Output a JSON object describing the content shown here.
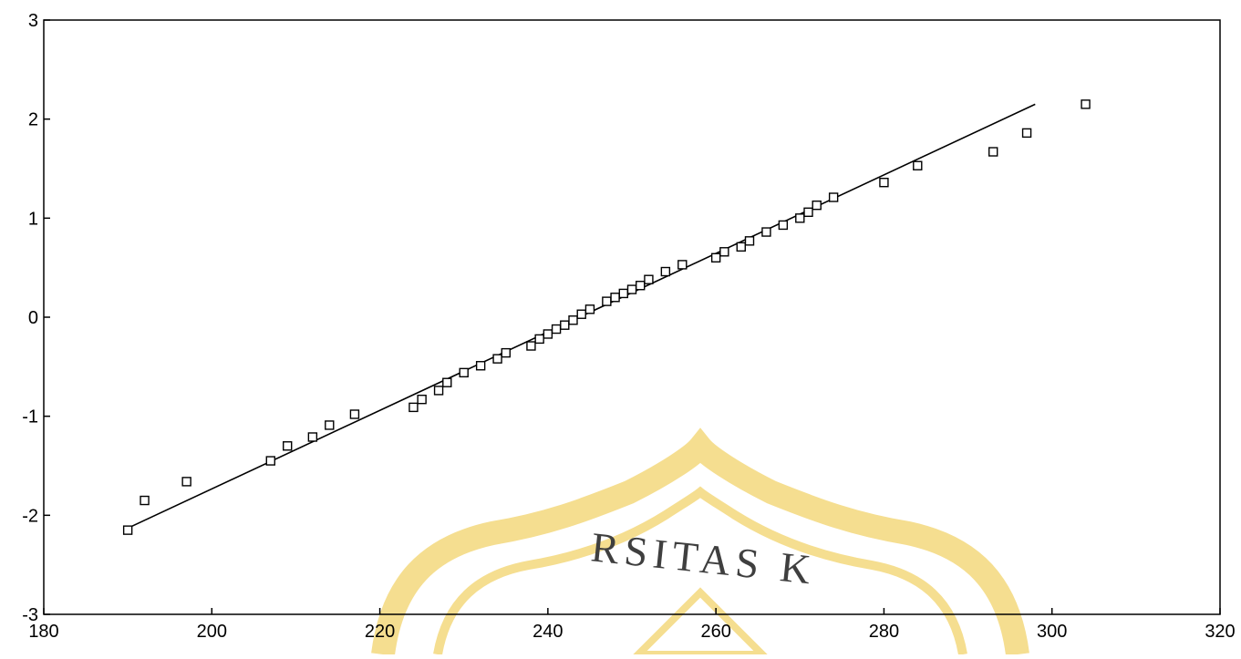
{
  "chart_data": {
    "type": "scatter",
    "title": "",
    "xlabel": "",
    "ylabel": "",
    "xlim": [
      180,
      320
    ],
    "ylim": [
      -3,
      3
    ],
    "grid": false,
    "legend": "none",
    "x_ticks": [
      "180",
      "200",
      "220",
      "240",
      "260",
      "280",
      "300",
      "320"
    ],
    "y_ticks": [
      "-3",
      "-2",
      "-1",
      "0",
      "1",
      "2",
      "3"
    ],
    "points": [
      {
        "x": 190,
        "y": -2.15
      },
      {
        "x": 192,
        "y": -1.85
      },
      {
        "x": 197,
        "y": -1.66
      },
      {
        "x": 207,
        "y": -1.45
      },
      {
        "x": 209,
        "y": -1.3
      },
      {
        "x": 212,
        "y": -1.21
      },
      {
        "x": 214,
        "y": -1.09
      },
      {
        "x": 217,
        "y": -0.98
      },
      {
        "x": 224,
        "y": -0.91
      },
      {
        "x": 225,
        "y": -0.83
      },
      {
        "x": 227,
        "y": -0.74
      },
      {
        "x": 228,
        "y": -0.66
      },
      {
        "x": 230,
        "y": -0.56
      },
      {
        "x": 232,
        "y": -0.49
      },
      {
        "x": 234,
        "y": -0.42
      },
      {
        "x": 235,
        "y": -0.36
      },
      {
        "x": 238,
        "y": -0.29
      },
      {
        "x": 239,
        "y": -0.22
      },
      {
        "x": 240,
        "y": -0.17
      },
      {
        "x": 241,
        "y": -0.12
      },
      {
        "x": 242,
        "y": -0.08
      },
      {
        "x": 243,
        "y": -0.03
      },
      {
        "x": 244,
        "y": 0.03
      },
      {
        "x": 245,
        "y": 0.08
      },
      {
        "x": 247,
        "y": 0.16
      },
      {
        "x": 248,
        "y": 0.2
      },
      {
        "x": 249,
        "y": 0.24
      },
      {
        "x": 250,
        "y": 0.28
      },
      {
        "x": 251,
        "y": 0.32
      },
      {
        "x": 252,
        "y": 0.38
      },
      {
        "x": 254,
        "y": 0.46
      },
      {
        "x": 256,
        "y": 0.53
      },
      {
        "x": 260,
        "y": 0.6
      },
      {
        "x": 261,
        "y": 0.66
      },
      {
        "x": 263,
        "y": 0.71
      },
      {
        "x": 264,
        "y": 0.77
      },
      {
        "x": 266,
        "y": 0.86
      },
      {
        "x": 268,
        "y": 0.93
      },
      {
        "x": 270,
        "y": 1.0
      },
      {
        "x": 271,
        "y": 1.06
      },
      {
        "x": 272,
        "y": 1.13
      },
      {
        "x": 274,
        "y": 1.21
      },
      {
        "x": 280,
        "y": 1.36
      },
      {
        "x": 284,
        "y": 1.53
      },
      {
        "x": 293,
        "y": 1.67
      },
      {
        "x": 297,
        "y": 1.86
      },
      {
        "x": 304,
        "y": 2.15
      }
    ],
    "fit_line": {
      "x": [
        190,
        298
      ],
      "y": [
        -2.13,
        2.15
      ]
    },
    "colors": {
      "axis": "#000000",
      "marker": "#000000",
      "line": "#000000",
      "watermark": "#f2d36b"
    }
  },
  "watermark": {
    "text": "RSITAS K"
  }
}
